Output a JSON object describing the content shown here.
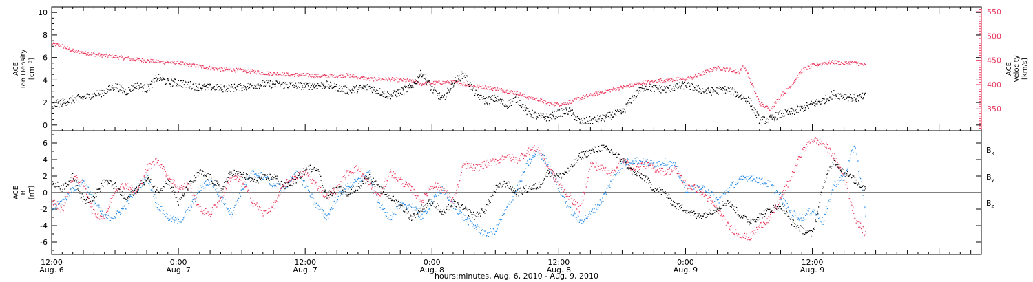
{
  "chart_data": [
    {
      "type": "scatter",
      "panel": "plasma",
      "ylabel_left": [
        "ACE",
        "Ion Density",
        "[cm⁻³]"
      ],
      "ylabel_right": [
        "ACE",
        "Velocity",
        "[km/s]"
      ],
      "ylim_left": [
        -0.5,
        10.5
      ],
      "yticks_left": [
        0,
        2,
        4,
        6,
        8,
        10
      ],
      "ylim_right": [
        305,
        560
      ],
      "yticks_right": [
        350,
        400,
        450,
        500,
        550
      ],
      "colors": {
        "density": "#000000",
        "velocity": "#e8385e"
      },
      "series": [
        {
          "axis": "left",
          "color": "#000000",
          "x": [
            12.0,
            14.0,
            16.0,
            17.0,
            18.0,
            19.0,
            20.0,
            21.0,
            22.0,
            23.0,
            24.0,
            26.0,
            28.0,
            30.0,
            32.0,
            34.0,
            36.0,
            38.0,
            40.0,
            42.0,
            44.0,
            46.0,
            47.0,
            48.0,
            49.0,
            50.0,
            51.0,
            52.0,
            53.0,
            54.0,
            55.0,
            56.0,
            57.0,
            58.0,
            59.0,
            60.0,
            61.0,
            62.0,
            64.0,
            66.0,
            67.0,
            68.0,
            70.0,
            72.0,
            74.0,
            76.0,
            78.0,
            79.0,
            80.0,
            81.0,
            82.0,
            83.0,
            84.0,
            85.0,
            86.0,
            87.0,
            88.0,
            89.0
          ],
          "y": [
            1.8,
            2.3,
            2.7,
            3.0,
            3.5,
            3.0,
            3.6,
            3.2,
            4.3,
            3.8,
            3.8,
            3.4,
            3.3,
            3.4,
            3.7,
            3.6,
            3.5,
            3.6,
            3.1,
            3.4,
            2.6,
            3.4,
            4.7,
            3.2,
            2.3,
            3.8,
            4.6,
            2.9,
            2.2,
            2.4,
            1.8,
            2.4,
            1.2,
            0.8,
            0.7,
            1.1,
            1.3,
            0.3,
            0.6,
            1.2,
            2.5,
            3.4,
            3.2,
            3.6,
            3.0,
            3.2,
            2.2,
            0.4,
            0.6,
            1.0,
            1.2,
            1.5,
            1.9,
            2.2,
            2.8,
            2.6,
            2.4,
            2.6
          ]
        },
        {
          "axis": "right",
          "color": "#e8385e",
          "x": [
            12.0,
            13.0,
            14.0,
            16.0,
            18.0,
            20.0,
            22.0,
            24.0,
            26.0,
            28.0,
            30.0,
            32.0,
            34.0,
            36.0,
            38.0,
            40.0,
            42.0,
            44.0,
            46.0,
            47.0,
            48.0,
            50.0,
            52.0,
            54.0,
            56.0,
            57.0,
            58.0,
            59.0,
            60.0,
            61.0,
            62.0,
            64.0,
            66.0,
            68.0,
            70.0,
            72.0,
            73.0,
            74.0,
            75.0,
            76.0,
            77.0,
            77.5,
            78.0,
            79.0,
            80.0,
            81.0,
            82.0,
            83.0,
            84.0,
            85.0,
            86.0,
            87.0,
            88.0,
            88.5,
            89.0
          ],
          "y": [
            485,
            480,
            470,
            463,
            458,
            452,
            448,
            445,
            438,
            432,
            430,
            425,
            422,
            420,
            418,
            420,
            412,
            412,
            408,
            402,
            404,
            406,
            398,
            392,
            383,
            375,
            370,
            362,
            360,
            365,
            373,
            385,
            395,
            405,
            410,
            412,
            418,
            428,
            435,
            432,
            426,
            440,
            415,
            362,
            350,
            378,
            400,
            430,
            440,
            445,
            447,
            445,
            446,
            443,
            440
          ]
        }
      ]
    },
    {
      "type": "scatter",
      "panel": "magnetic-field",
      "ylabel_left": [
        "ACE",
        "B",
        "[nT]"
      ],
      "ylim": [
        -7.5,
        7.5
      ],
      "yticks": [
        -6,
        -4,
        -2,
        0,
        2,
        4,
        6
      ],
      "zero_line": true,
      "legend_position": "right",
      "series": [
        {
          "name": "Bx",
          "color": "#000000",
          "x": [
            12.0,
            13.0,
            14.0,
            15.0,
            16.0,
            17.0,
            18.0,
            19.0,
            20.0,
            21.0,
            22.0,
            23.0,
            24.0,
            25.0,
            26.0,
            27.0,
            28.0,
            29.0,
            30.0,
            31.0,
            32.0,
            33.0,
            34.0,
            35.0,
            36.0,
            37.0,
            38.0,
            39.0,
            40.0,
            41.0,
            42.0,
            43.0,
            44.0,
            45.0,
            46.0,
            47.0,
            48.0,
            49.0,
            50.0,
            51.0,
            52.0,
            53.0,
            54.0,
            55.0,
            56.0,
            57.0,
            58.0,
            59.0,
            60.0,
            61.0,
            62.0,
            63.0,
            64.0,
            65.0,
            66.0,
            67.0,
            68.0,
            69.0,
            70.0,
            71.0,
            72.0,
            73.0,
            74.0,
            75.0,
            76.0,
            77.0,
            78.0,
            79.0,
            80.0,
            81.0,
            82.0,
            83.0,
            84.0,
            85.0,
            86.0,
            87.0,
            88.0,
            89.0
          ],
          "y": [
            1.2,
            0.6,
            2.0,
            -1.0,
            -0.5,
            1.5,
            0.8,
            -0.8,
            0.5,
            1.8,
            0.2,
            1.5,
            -1.2,
            1.0,
            2.5,
            1.8,
            0.5,
            2.5,
            2.2,
            1.5,
            1.8,
            2.0,
            0.8,
            1.5,
            2.8,
            3.2,
            -0.3,
            0.5,
            0.0,
            0.8,
            2.0,
            0.5,
            -0.5,
            -1.5,
            -3.0,
            -1.8,
            -1.0,
            -2.5,
            -1.2,
            -2.0,
            -2.8,
            -2.0,
            0.5,
            1.2,
            0.0,
            0.5,
            0.8,
            2.5,
            2.0,
            2.8,
            4.5,
            5.0,
            5.5,
            5.0,
            4.0,
            2.5,
            2.0,
            0.5,
            0.0,
            -1.5,
            -2.0,
            -2.8,
            -2.5,
            -1.8,
            -1.0,
            -2.5,
            -3.5,
            -2.8,
            -2.0,
            -1.5,
            -3.5,
            -4.5,
            -5.0,
            1.0,
            4.0,
            2.5,
            1.5,
            0.5
          ]
        },
        {
          "name": "By",
          "color": "#2a8de6",
          "x": [
            12.0,
            13.0,
            14.0,
            15.0,
            16.0,
            17.0,
            18.0,
            19.0,
            20.0,
            21.0,
            22.0,
            23.0,
            24.0,
            25.0,
            26.0,
            27.0,
            28.0,
            29.0,
            30.0,
            31.0,
            32.0,
            33.0,
            34.0,
            35.0,
            36.0,
            37.0,
            38.0,
            39.0,
            40.0,
            41.0,
            42.0,
            43.0,
            44.0,
            45.0,
            46.0,
            47.0,
            48.0,
            49.0,
            50.0,
            51.0,
            52.0,
            53.0,
            54.0,
            55.0,
            56.0,
            57.0,
            58.0,
            59.0,
            60.0,
            61.0,
            62.0,
            63.0,
            64.0,
            65.0,
            66.0,
            67.0,
            68.0,
            69.0,
            70.0,
            71.0,
            72.0,
            73.0,
            74.0,
            75.0,
            76.0,
            77.0,
            78.0,
            79.0,
            80.0,
            81.0,
            82.0,
            83.0,
            84.0,
            85.0,
            86.0,
            87.0,
            88.0,
            89.0
          ],
          "y": [
            -2.0,
            -1.0,
            0.5,
            1.5,
            -1.0,
            -3.0,
            -2.8,
            -1.5,
            0.5,
            2.0,
            -1.5,
            -3.0,
            -3.5,
            -2.0,
            0.5,
            1.5,
            -0.5,
            -2.5,
            0.5,
            2.5,
            2.0,
            1.0,
            0.5,
            2.5,
            1.0,
            -1.5,
            -3.0,
            -0.5,
            0.8,
            1.5,
            2.5,
            -1.5,
            -3.0,
            -1.5,
            -1.5,
            -3.0,
            -1.0,
            0.5,
            -1.5,
            -3.0,
            -4.0,
            -5.0,
            -4.5,
            -2.0,
            0.5,
            3.5,
            5.0,
            3.5,
            0.5,
            -2.0,
            -3.5,
            -2.5,
            -1.0,
            1.5,
            3.5,
            4.0,
            3.8,
            3.5,
            3.8,
            3.2,
            0.5,
            0.5,
            0.5,
            -1.0,
            0.5,
            1.5,
            2.0,
            1.5,
            1.0,
            -0.5,
            -2.5,
            -3.0,
            -2.0,
            -3.5,
            1.0,
            2.0,
            6.0,
            -2.5
          ]
        },
        {
          "name": "Bz",
          "color": "#e8385e",
          "x": [
            12.0,
            13.0,
            14.0,
            15.0,
            16.0,
            17.0,
            18.0,
            19.0,
            20.0,
            21.0,
            22.0,
            23.0,
            24.0,
            25.0,
            26.0,
            27.0,
            28.0,
            29.0,
            30.0,
            31.0,
            32.0,
            33.0,
            34.0,
            35.0,
            36.0,
            37.0,
            38.0,
            39.0,
            40.0,
            41.0,
            42.0,
            43.0,
            44.0,
            45.0,
            46.0,
            47.0,
            48.0,
            49.0,
            50.0,
            51.0,
            52.0,
            53.0,
            54.0,
            55.0,
            56.0,
            57.0,
            58.0,
            59.0,
            60.0,
            61.0,
            62.0,
            63.0,
            64.0,
            65.0,
            66.0,
            67.0,
            68.0,
            69.0,
            70.0,
            71.0,
            72.0,
            73.0,
            74.0,
            75.0,
            76.0,
            77.0,
            78.0,
            79.0,
            80.0,
            81.0,
            82.0,
            83.0,
            84.0,
            85.0,
            86.0,
            87.0,
            88.0,
            89.0
          ],
          "y": [
            -1.0,
            -2.0,
            2.0,
            1.0,
            -2.5,
            -3.0,
            0.5,
            1.0,
            0.0,
            3.0,
            4.0,
            2.0,
            0.5,
            1.0,
            -2.0,
            -2.5,
            -0.5,
            2.0,
            1.5,
            -1.0,
            -2.5,
            -1.5,
            1.0,
            2.0,
            2.5,
            1.0,
            -0.5,
            0.5,
            2.5,
            3.0,
            1.0,
            -0.5,
            2.5,
            1.5,
            0.5,
            -1.0,
            1.0,
            0.5,
            -1.0,
            3.5,
            3.0,
            3.5,
            3.8,
            4.5,
            4.0,
            5.0,
            5.5,
            3.0,
            1.0,
            -0.5,
            -2.0,
            3.5,
            3.0,
            2.5,
            4.0,
            3.0,
            3.5,
            3.0,
            2.5,
            2.8,
            1.0,
            0.5,
            -0.5,
            -2.0,
            -4.0,
            -5.0,
            -5.5,
            -4.0,
            -3.0,
            -0.5,
            2.0,
            5.0,
            6.5,
            6.0,
            4.5,
            2.0,
            -3.0,
            -5.0
          ]
        }
      ]
    }
  ],
  "x_axis": {
    "range_hours": [
      12,
      100
    ],
    "major_ticks": [
      12,
      24,
      36,
      48,
      60,
      72,
      84,
      96
    ],
    "tick_labels": [
      {
        "time": "12:00",
        "date": "Aug. 6"
      },
      {
        "time": "0:00",
        "date": "Aug. 7"
      },
      {
        "time": "12:00",
        "date": "Aug. 7"
      },
      {
        "time": "0:00",
        "date": "Aug. 8"
      },
      {
        "time": "12:00",
        "date": "Aug. 8"
      },
      {
        "time": "0:00",
        "date": "Aug. 9"
      },
      {
        "time": "12:00",
        "date": "Aug. 9"
      }
    ],
    "title": "hours:minutes, Aug.  6, 2010 - Aug.  9, 2010"
  },
  "legend": {
    "bx_main": "B",
    "bx_sub": "x",
    "by_main": "B",
    "by_sub": "y",
    "bz_main": "B",
    "bz_sub": "z"
  },
  "labels": {
    "top_left_1": "ACE",
    "top_left_2": "Ion Density",
    "top_left_3": "[cm⁻³]",
    "top_right_1": "ACE",
    "top_right_2": "Velocity",
    "top_right_3": "[km/s]",
    "bottom_left_1": "ACE",
    "bottom_left_2": "B",
    "bottom_left_3": "[nT]"
  }
}
